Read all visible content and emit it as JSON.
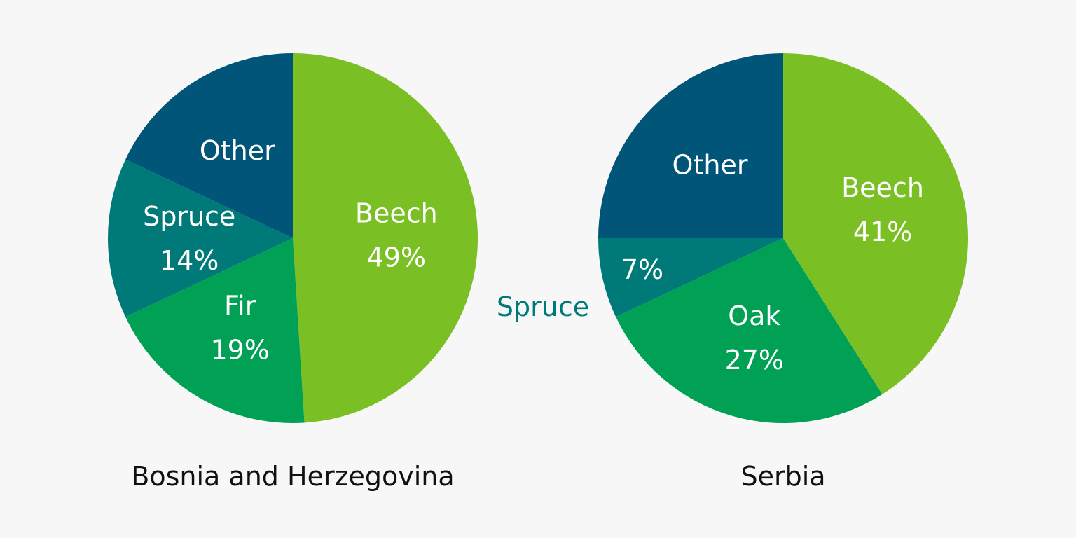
{
  "chart_data": [
    {
      "type": "pie",
      "title": "Bosnia and Herzegovina",
      "slices": [
        {
          "name": "Beech",
          "value": 49,
          "value_label": "49%",
          "color": "#7abf23",
          "label_inside": true
        },
        {
          "name": "Fir",
          "value": 19,
          "value_label": "19%",
          "color": "#00a155",
          "label_inside": true
        },
        {
          "name": "Spruce",
          "value": 14,
          "value_label": "14%",
          "color": "#007a79",
          "label_inside": true
        },
        {
          "name": "Other",
          "value": 18,
          "value_label": "",
          "color": "#005578",
          "label_inside": true
        }
      ]
    },
    {
      "type": "pie",
      "title": "Serbia",
      "slices": [
        {
          "name": "Beech",
          "value": 41,
          "value_label": "41%",
          "color": "#7abf23",
          "label_inside": true
        },
        {
          "name": "Oak",
          "value": 27,
          "value_label": "27%",
          "color": "#00a155",
          "label_inside": true
        },
        {
          "name": "Spruce",
          "value": 7,
          "value_label": "7%",
          "color": "#007a79",
          "label_inside": false
        },
        {
          "name": "Other",
          "value": 25,
          "value_label": "",
          "color": "#005578",
          "label_inside": true
        }
      ]
    }
  ]
}
